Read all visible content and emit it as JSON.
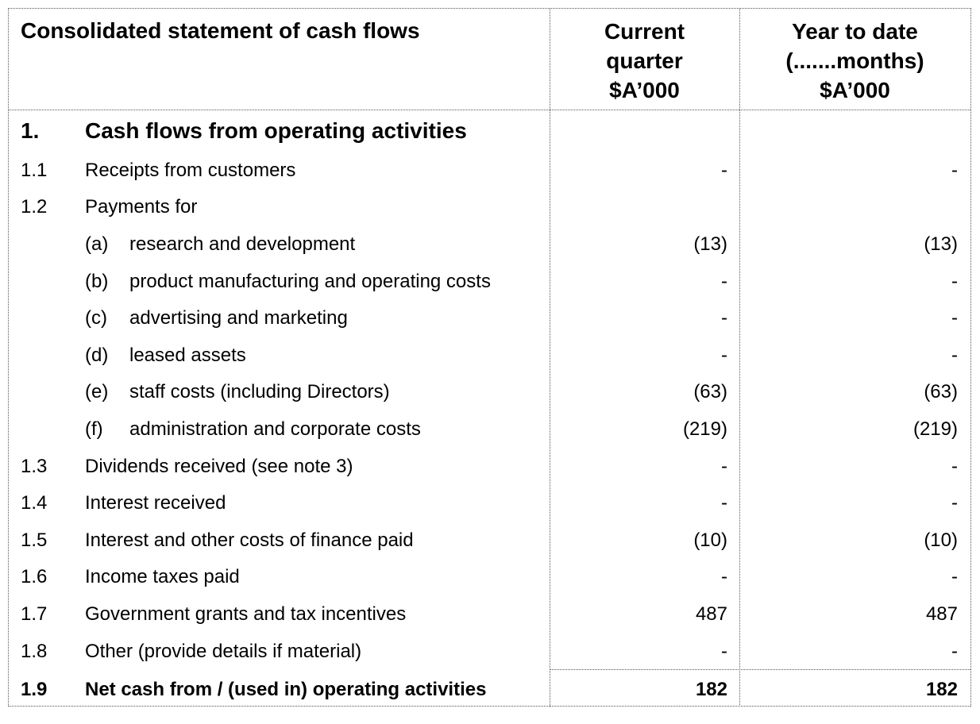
{
  "header": {
    "title": "Consolidated statement of cash flows",
    "col1": [
      "Current",
      "quarter",
      "$A’000"
    ],
    "col2": [
      "Year to date",
      "(.......months)",
      "$A’000"
    ]
  },
  "section": {
    "num": "1.",
    "title": "Cash flows from operating activities"
  },
  "rows": [
    {
      "num": "1.1",
      "label": "Receipts from customers",
      "v1": "-",
      "v2": "-"
    },
    {
      "num": "1.2",
      "label": "Payments for",
      "v1": "",
      "v2": ""
    },
    {
      "letter": "(a)",
      "label": "research and development",
      "v1": "(13)",
      "v2": "(13)"
    },
    {
      "letter": "(b)",
      "label": "product manufacturing and operating costs",
      "v1": "-",
      "v2": "-"
    },
    {
      "letter": "(c)",
      "label": "advertising and marketing",
      "v1": "-",
      "v2": "-"
    },
    {
      "letter": "(d)",
      "label": "leased assets",
      "v1": "-",
      "v2": "-"
    },
    {
      "letter": "(e)",
      "label": "staff costs (including Directors)",
      "v1": "(63)",
      "v2": "(63)"
    },
    {
      "letter": "(f)",
      "label": "administration and corporate costs",
      "v1": "(219)",
      "v2": "(219)"
    },
    {
      "num": "1.3",
      "label": "Dividends received (see note 3)",
      "v1": "-",
      "v2": "-"
    },
    {
      "num": "1.4",
      "label": "Interest received",
      "v1": "-",
      "v2": "-"
    },
    {
      "num": "1.5",
      "label": "Interest and other costs of finance paid",
      "v1": "(10)",
      "v2": "(10)"
    },
    {
      "num": "1.6",
      "label": "Income taxes paid",
      "v1": "-",
      "v2": "-"
    },
    {
      "num": "1.7",
      "label": "Government grants and tax incentives",
      "v1": "487",
      "v2": "487"
    },
    {
      "num": "1.8",
      "label": "Other (provide details if material)",
      "v1": "-",
      "v2": "-"
    },
    {
      "num": "1.9",
      "label": "Net cash from / (used in) operating activities",
      "v1": "182",
      "v2": "182",
      "bold": true
    }
  ]
}
